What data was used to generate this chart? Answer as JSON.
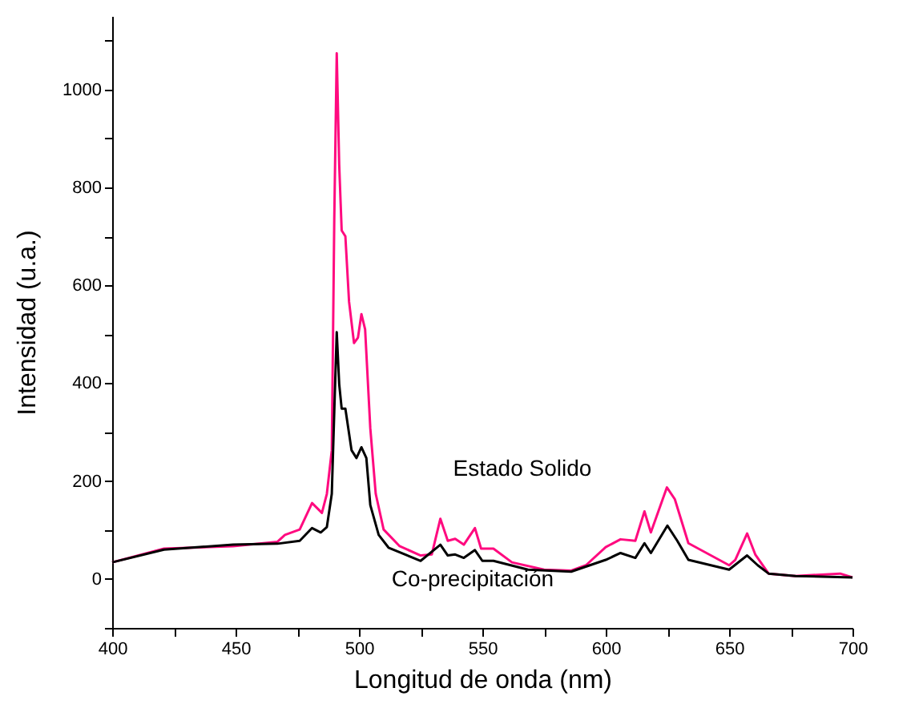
{
  "chart_data": {
    "type": "line",
    "xlabel": "Longitud de onda (nm)",
    "ylabel": "Intensidad (u.a.)",
    "xlim": [
      400,
      700
    ],
    "ylim": [
      -100,
      1150
    ],
    "xticks": [
      400,
      {
        "value": 425,
        "label": null
      },
      450,
      {
        "value": 475,
        "label": null
      },
      500,
      {
        "value": 525,
        "label": null
      },
      550,
      {
        "value": 575,
        "label": null
      },
      600,
      {
        "value": 625,
        "label": null
      },
      650,
      {
        "value": 675,
        "label": null
      },
      700
    ],
    "yticks": [
      {
        "value": -100,
        "label": null
      },
      0,
      {
        "value": 100,
        "label": null
      },
      200,
      {
        "value": 300,
        "label": null
      },
      400,
      {
        "value": 500,
        "label": null
      },
      600,
      {
        "value": 700,
        "label": null
      },
      800,
      {
        "value": 900,
        "label": null
      },
      1000,
      {
        "value": 1100,
        "label": null
      }
    ],
    "grid": false,
    "line_style": "solid",
    "marker": "none",
    "series": [
      {
        "name": "Estado Solido",
        "color": "#ff0a7f",
        "x": [
          400,
          421,
          449,
          467,
          470,
          476,
          481,
          485,
          487,
          489,
          490,
          491,
          492,
          493,
          494.5,
          496,
          498,
          499.6,
          501,
          502.5,
          504.6,
          506.8,
          510,
          516.5,
          525,
          529.5,
          533,
          536,
          539,
          542.5,
          547,
          549.5,
          554.5,
          562,
          575,
          586,
          592,
          600,
          606,
          612,
          615.7,
          618.3,
          624.8,
          628,
          633.5,
          650,
          652.5,
          657.3,
          660.6,
          666,
          676.8,
          695,
          700
        ],
        "values": [
          34,
          62,
          67,
          76,
          90,
          101,
          155,
          135,
          174,
          263,
          734,
          1074,
          846,
          712,
          700,
          566,
          482,
          493,
          541,
          510,
          308,
          174,
          101,
          67,
          48,
          50,
          123,
          78,
          82,
          70,
          104,
          62,
          62,
          34,
          19,
          17,
          28,
          65,
          81,
          78,
          138,
          95,
          187,
          163,
          73,
          28,
          39,
          93,
          50,
          11,
          6,
          11,
          3
        ]
      },
      {
        "name": "Co-precipitación",
        "color": "#000000",
        "x": [
          400,
          421,
          449,
          467,
          476,
          481,
          484.5,
          487,
          489,
          490,
          491,
          492,
          493,
          494.5,
          497,
          499,
          501,
          503,
          504.6,
          508,
          512,
          525,
          533,
          536,
          539,
          542.5,
          547,
          550,
          554.5,
          568.5,
          586,
          600,
          606,
          612,
          615.7,
          618.3,
          625,
          629,
          633.5,
          650,
          657.3,
          661.6,
          666,
          677,
          700
        ],
        "values": [
          34,
          60,
          70,
          72,
          78,
          104,
          95,
          106,
          174,
          342,
          504,
          398,
          348,
          348,
          263,
          247,
          269,
          247,
          151,
          90,
          64,
          37,
          70,
          48,
          50,
          43,
          59,
          37,
          37,
          19,
          15,
          39,
          53,
          43,
          73,
          53,
          109,
          78,
          39,
          19,
          48,
          28,
          11,
          6,
          3
        ]
      }
    ]
  }
}
